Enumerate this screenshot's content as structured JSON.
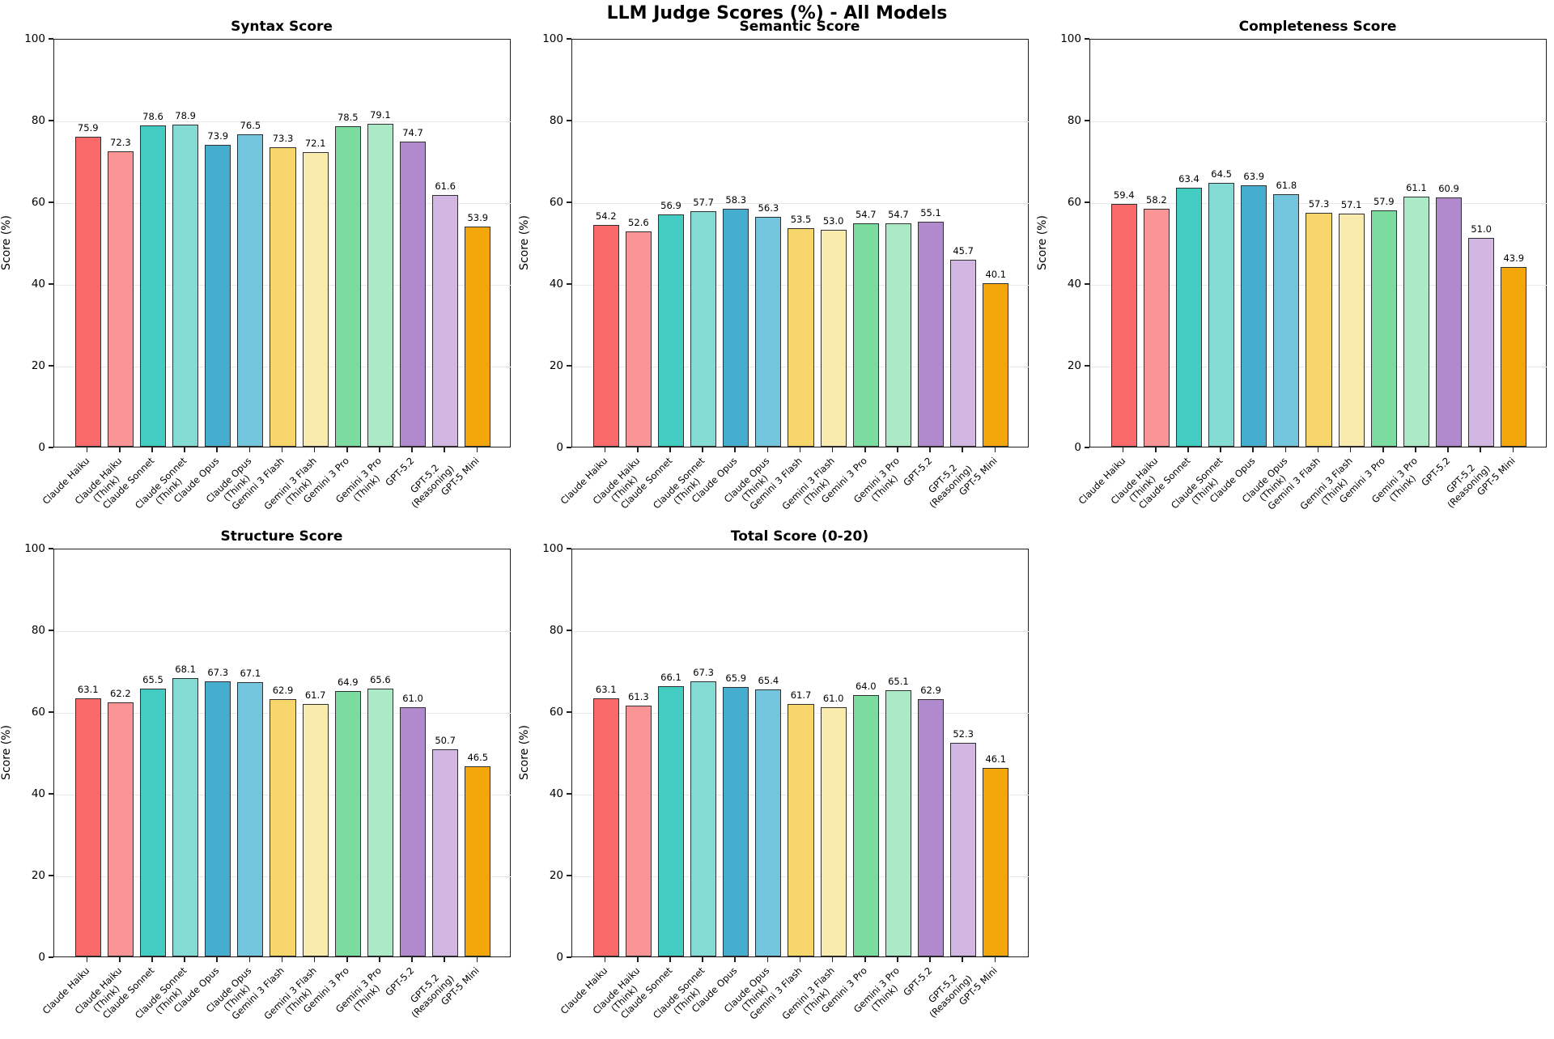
{
  "figure_title": "LLM Judge Scores (%) - All Models",
  "bar_colors": [
    "#FB6A6A",
    "#FB9595",
    "#43CCC1",
    "#83DBD4",
    "#45AECF",
    "#74C6DF",
    "#F7D66C",
    "#F9EBAE",
    "#7CDCA0",
    "#ACE9C7",
    "#B189CD",
    "#D2B7E2",
    "#F4A70B"
  ],
  "bar_edge_color": "#303030",
  "chart_data": [
    {
      "type": "bar",
      "title": "Syntax Score",
      "ylabel": "Score (%)",
      "ylim": [
        0,
        100
      ],
      "yticks": [
        0,
        20,
        40,
        60,
        80,
        100
      ],
      "grid": "horizontal",
      "categories": [
        "Claude Haiku",
        "Claude Haiku\n(Think)",
        "Claude Sonnet",
        "Claude Sonnet\n(Think)",
        "Claude Opus",
        "Claude Opus\n(Think)",
        "Gemini 3 Flash",
        "Gemini 3 Flash\n(Think)",
        "Gemini 3 Pro",
        "Gemini 3 Pro\n(Think)",
        "GPT-5.2",
        "GPT-5.2\n(Reasoning)",
        "GPT-5 Mini"
      ],
      "values": [
        75.9,
        72.3,
        78.6,
        78.9,
        73.9,
        76.5,
        73.3,
        72.1,
        78.5,
        79.1,
        74.7,
        61.6,
        53.9
      ]
    },
    {
      "type": "bar",
      "title": "Semantic Score",
      "ylabel": "Score (%)",
      "ylim": [
        0,
        100
      ],
      "yticks": [
        0,
        20,
        40,
        60,
        80,
        100
      ],
      "grid": "horizontal",
      "categories": [
        "Claude Haiku",
        "Claude Haiku\n(Think)",
        "Claude Sonnet",
        "Claude Sonnet\n(Think)",
        "Claude Opus",
        "Claude Opus\n(Think)",
        "Gemini 3 Flash",
        "Gemini 3 Flash\n(Think)",
        "Gemini 3 Pro",
        "Gemini 3 Pro\n(Think)",
        "GPT-5.2",
        "GPT-5.2\n(Reasoning)",
        "GPT-5 Mini"
      ],
      "values": [
        54.2,
        52.6,
        56.9,
        57.7,
        58.3,
        56.3,
        53.5,
        53.0,
        54.7,
        54.7,
        55.1,
        45.7,
        40.1
      ]
    },
    {
      "type": "bar",
      "title": "Completeness Score",
      "ylabel": "Score (%)",
      "ylim": [
        0,
        100
      ],
      "yticks": [
        0,
        20,
        40,
        60,
        80,
        100
      ],
      "grid": "horizontal",
      "categories": [
        "Claude Haiku",
        "Claude Haiku\n(Think)",
        "Claude Sonnet",
        "Claude Sonnet\n(Think)",
        "Claude Opus",
        "Claude Opus\n(Think)",
        "Gemini 3 Flash",
        "Gemini 3 Flash\n(Think)",
        "Gemini 3 Pro",
        "Gemini 3 Pro\n(Think)",
        "GPT-5.2",
        "GPT-5.2\n(Reasoning)",
        "GPT-5 Mini"
      ],
      "values": [
        59.4,
        58.2,
        63.4,
        64.5,
        63.9,
        61.8,
        57.3,
        57.1,
        57.9,
        61.1,
        60.9,
        51.0,
        43.9
      ]
    },
    {
      "type": "bar",
      "title": "Structure Score",
      "ylabel": "Score (%)",
      "ylim": [
        0,
        100
      ],
      "yticks": [
        0,
        20,
        40,
        60,
        80,
        100
      ],
      "grid": "horizontal",
      "categories": [
        "Claude Haiku",
        "Claude Haiku\n(Think)",
        "Claude Sonnet",
        "Claude Sonnet\n(Think)",
        "Claude Opus",
        "Claude Opus\n(Think)",
        "Gemini 3 Flash",
        "Gemini 3 Flash\n(Think)",
        "Gemini 3 Pro",
        "Gemini 3 Pro\n(Think)",
        "GPT-5.2",
        "GPT-5.2\n(Reasoning)",
        "GPT-5 Mini"
      ],
      "values": [
        63.1,
        62.2,
        65.5,
        68.1,
        67.3,
        67.1,
        62.9,
        61.7,
        64.9,
        65.6,
        61.0,
        50.7,
        46.5
      ]
    },
    {
      "type": "bar",
      "title": "Total Score (0-20)",
      "ylabel": "Score (%)",
      "ylim": [
        0,
        100
      ],
      "yticks": [
        0,
        20,
        40,
        60,
        80,
        100
      ],
      "grid": "horizontal",
      "categories": [
        "Claude Haiku",
        "Claude Haiku\n(Think)",
        "Claude Sonnet",
        "Claude Sonnet\n(Think)",
        "Claude Opus",
        "Claude Opus\n(Think)",
        "Gemini 3 Flash",
        "Gemini 3 Flash\n(Think)",
        "Gemini 3 Pro",
        "Gemini 3 Pro\n(Think)",
        "GPT-5.2",
        "GPT-5.2\n(Reasoning)",
        "GPT-5 Mini"
      ],
      "values": [
        63.1,
        61.3,
        66.1,
        67.3,
        65.9,
        65.4,
        61.7,
        61.0,
        64.0,
        65.1,
        62.9,
        52.3,
        46.1
      ]
    }
  ]
}
